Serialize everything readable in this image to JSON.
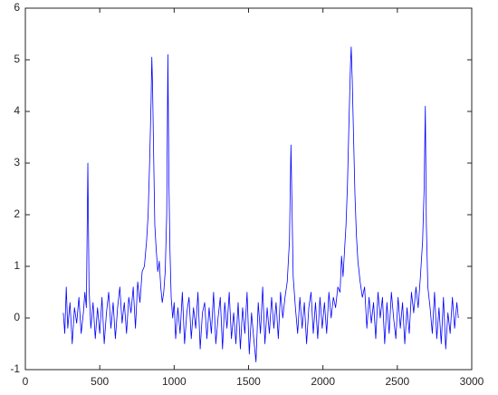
{
  "chart_data": {
    "type": "line",
    "color": "#0000ff",
    "x": [
      255,
      265,
      275,
      285,
      300,
      315,
      330,
      345,
      360,
      375,
      390,
      400,
      410,
      420,
      428,
      440,
      455,
      470,
      485,
      500,
      515,
      530,
      545,
      560,
      575,
      590,
      605,
      620,
      635,
      650,
      665,
      680,
      695,
      710,
      725,
      740,
      755,
      770,
      785,
      800,
      815,
      825,
      835,
      845,
      850,
      855,
      862,
      870,
      880,
      890,
      900,
      910,
      920,
      930,
      940,
      950,
      958,
      965,
      972,
      980,
      990,
      1000,
      1010,
      1025,
      1040,
      1055,
      1070,
      1085,
      1100,
      1115,
      1130,
      1145,
      1160,
      1175,
      1190,
      1205,
      1220,
      1235,
      1250,
      1265,
      1280,
      1295,
      1310,
      1325,
      1340,
      1355,
      1370,
      1385,
      1400,
      1415,
      1430,
      1445,
      1460,
      1475,
      1490,
      1505,
      1520,
      1535,
      1550,
      1565,
      1580,
      1595,
      1610,
      1625,
      1640,
      1655,
      1670,
      1685,
      1700,
      1715,
      1730,
      1745,
      1760,
      1775,
      1785,
      1793,
      1800,
      1815,
      1830,
      1845,
      1860,
      1875,
      1890,
      1905,
      1920,
      1935,
      1950,
      1965,
      1980,
      1995,
      2010,
      2025,
      2040,
      2055,
      2070,
      2085,
      2100,
      2115,
      2125,
      2135,
      2145,
      2155,
      2165,
      2175,
      2185,
      2190,
      2197,
      2205,
      2215,
      2225,
      2235,
      2250,
      2265,
      2280,
      2295,
      2310,
      2325,
      2340,
      2355,
      2370,
      2385,
      2400,
      2415,
      2430,
      2445,
      2460,
      2475,
      2490,
      2505,
      2520,
      2535,
      2550,
      2565,
      2580,
      2595,
      2610,
      2625,
      2640,
      2655,
      2670,
      2680,
      2688,
      2695,
      2705,
      2720,
      2735,
      2750,
      2765,
      2780,
      2795,
      2810,
      2825,
      2840,
      2855,
      2870,
      2885,
      2900,
      2910
    ],
    "values": [
      0.1,
      -0.3,
      0.6,
      -0.2,
      0.3,
      -0.5,
      0.2,
      -0.1,
      0.4,
      -0.3,
      0.1,
      0.5,
      0.2,
      3.0,
      0.6,
      -0.2,
      0.3,
      -0.4,
      0.2,
      -0.3,
      0.4,
      -0.5,
      0.1,
      0.5,
      -0.2,
      0.3,
      -0.4,
      0.2,
      0.6,
      -0.1,
      0.3,
      -0.3,
      0.4,
      0.1,
      0.6,
      -0.2,
      0.7,
      0.3,
      0.9,
      1.0,
      1.5,
      2.0,
      3.0,
      4.2,
      5.05,
      4.5,
      3.2,
      1.8,
      1.3,
      0.9,
      1.1,
      0.6,
      0.3,
      0.5,
      0.9,
      2.0,
      5.1,
      2.6,
      1.3,
      0.4,
      0.0,
      0.3,
      -0.4,
      0.2,
      -0.3,
      0.5,
      -0.5,
      0.1,
      0.4,
      -0.4,
      0.2,
      -0.2,
      0.5,
      -0.6,
      0.1,
      0.3,
      -0.4,
      0.2,
      -0.3,
      0.5,
      -0.5,
      0.0,
      0.4,
      -0.6,
      0.3,
      -0.2,
      0.5,
      -0.4,
      0.1,
      -0.5,
      0.3,
      -0.6,
      0.2,
      -0.3,
      0.5,
      -0.7,
      0.1,
      -0.4,
      -0.85,
      0.3,
      -0.3,
      0.6,
      -0.5,
      0.2,
      -0.3,
      0.4,
      -0.2,
      0.3,
      -0.4,
      0.5,
      0.0,
      0.4,
      0.7,
      1.5,
      3.35,
      2.0,
      0.8,
      0.2,
      -0.3,
      0.4,
      -0.2,
      0.3,
      -0.5,
      0.2,
      0.5,
      -0.3,
      0.3,
      -0.4,
      0.4,
      -0.2,
      0.3,
      -0.3,
      0.5,
      0.0,
      0.4,
      0.2,
      0.6,
      0.5,
      1.2,
      0.8,
      1.3,
      1.8,
      2.6,
      3.8,
      4.9,
      5.25,
      4.6,
      3.6,
      2.4,
      1.6,
      1.1,
      0.7,
      0.4,
      0.6,
      -0.2,
      0.4,
      -0.1,
      0.3,
      -0.4,
      0.5,
      0.0,
      0.4,
      -0.5,
      0.3,
      -0.3,
      0.5,
      0.0,
      -0.4,
      0.4,
      -0.2,
      0.3,
      -0.5,
      0.2,
      -0.3,
      0.5,
      0.1,
      0.6,
      0.2,
      0.8,
      1.5,
      2.5,
      4.1,
      1.8,
      0.6,
      0.2,
      -0.3,
      0.5,
      -0.4,
      0.2,
      -0.5,
      0.4,
      -0.6,
      0.1,
      -0.3,
      0.4,
      -0.2,
      0.3,
      0.0
    ],
    "xlim": [
      0,
      3000
    ],
    "ylim": [
      -1,
      6
    ],
    "xticks": [
      0,
      500,
      1000,
      1500,
      2000,
      2500,
      3000
    ],
    "yticks": [
      -1,
      0,
      1,
      2,
      3,
      4,
      5,
      6
    ]
  }
}
